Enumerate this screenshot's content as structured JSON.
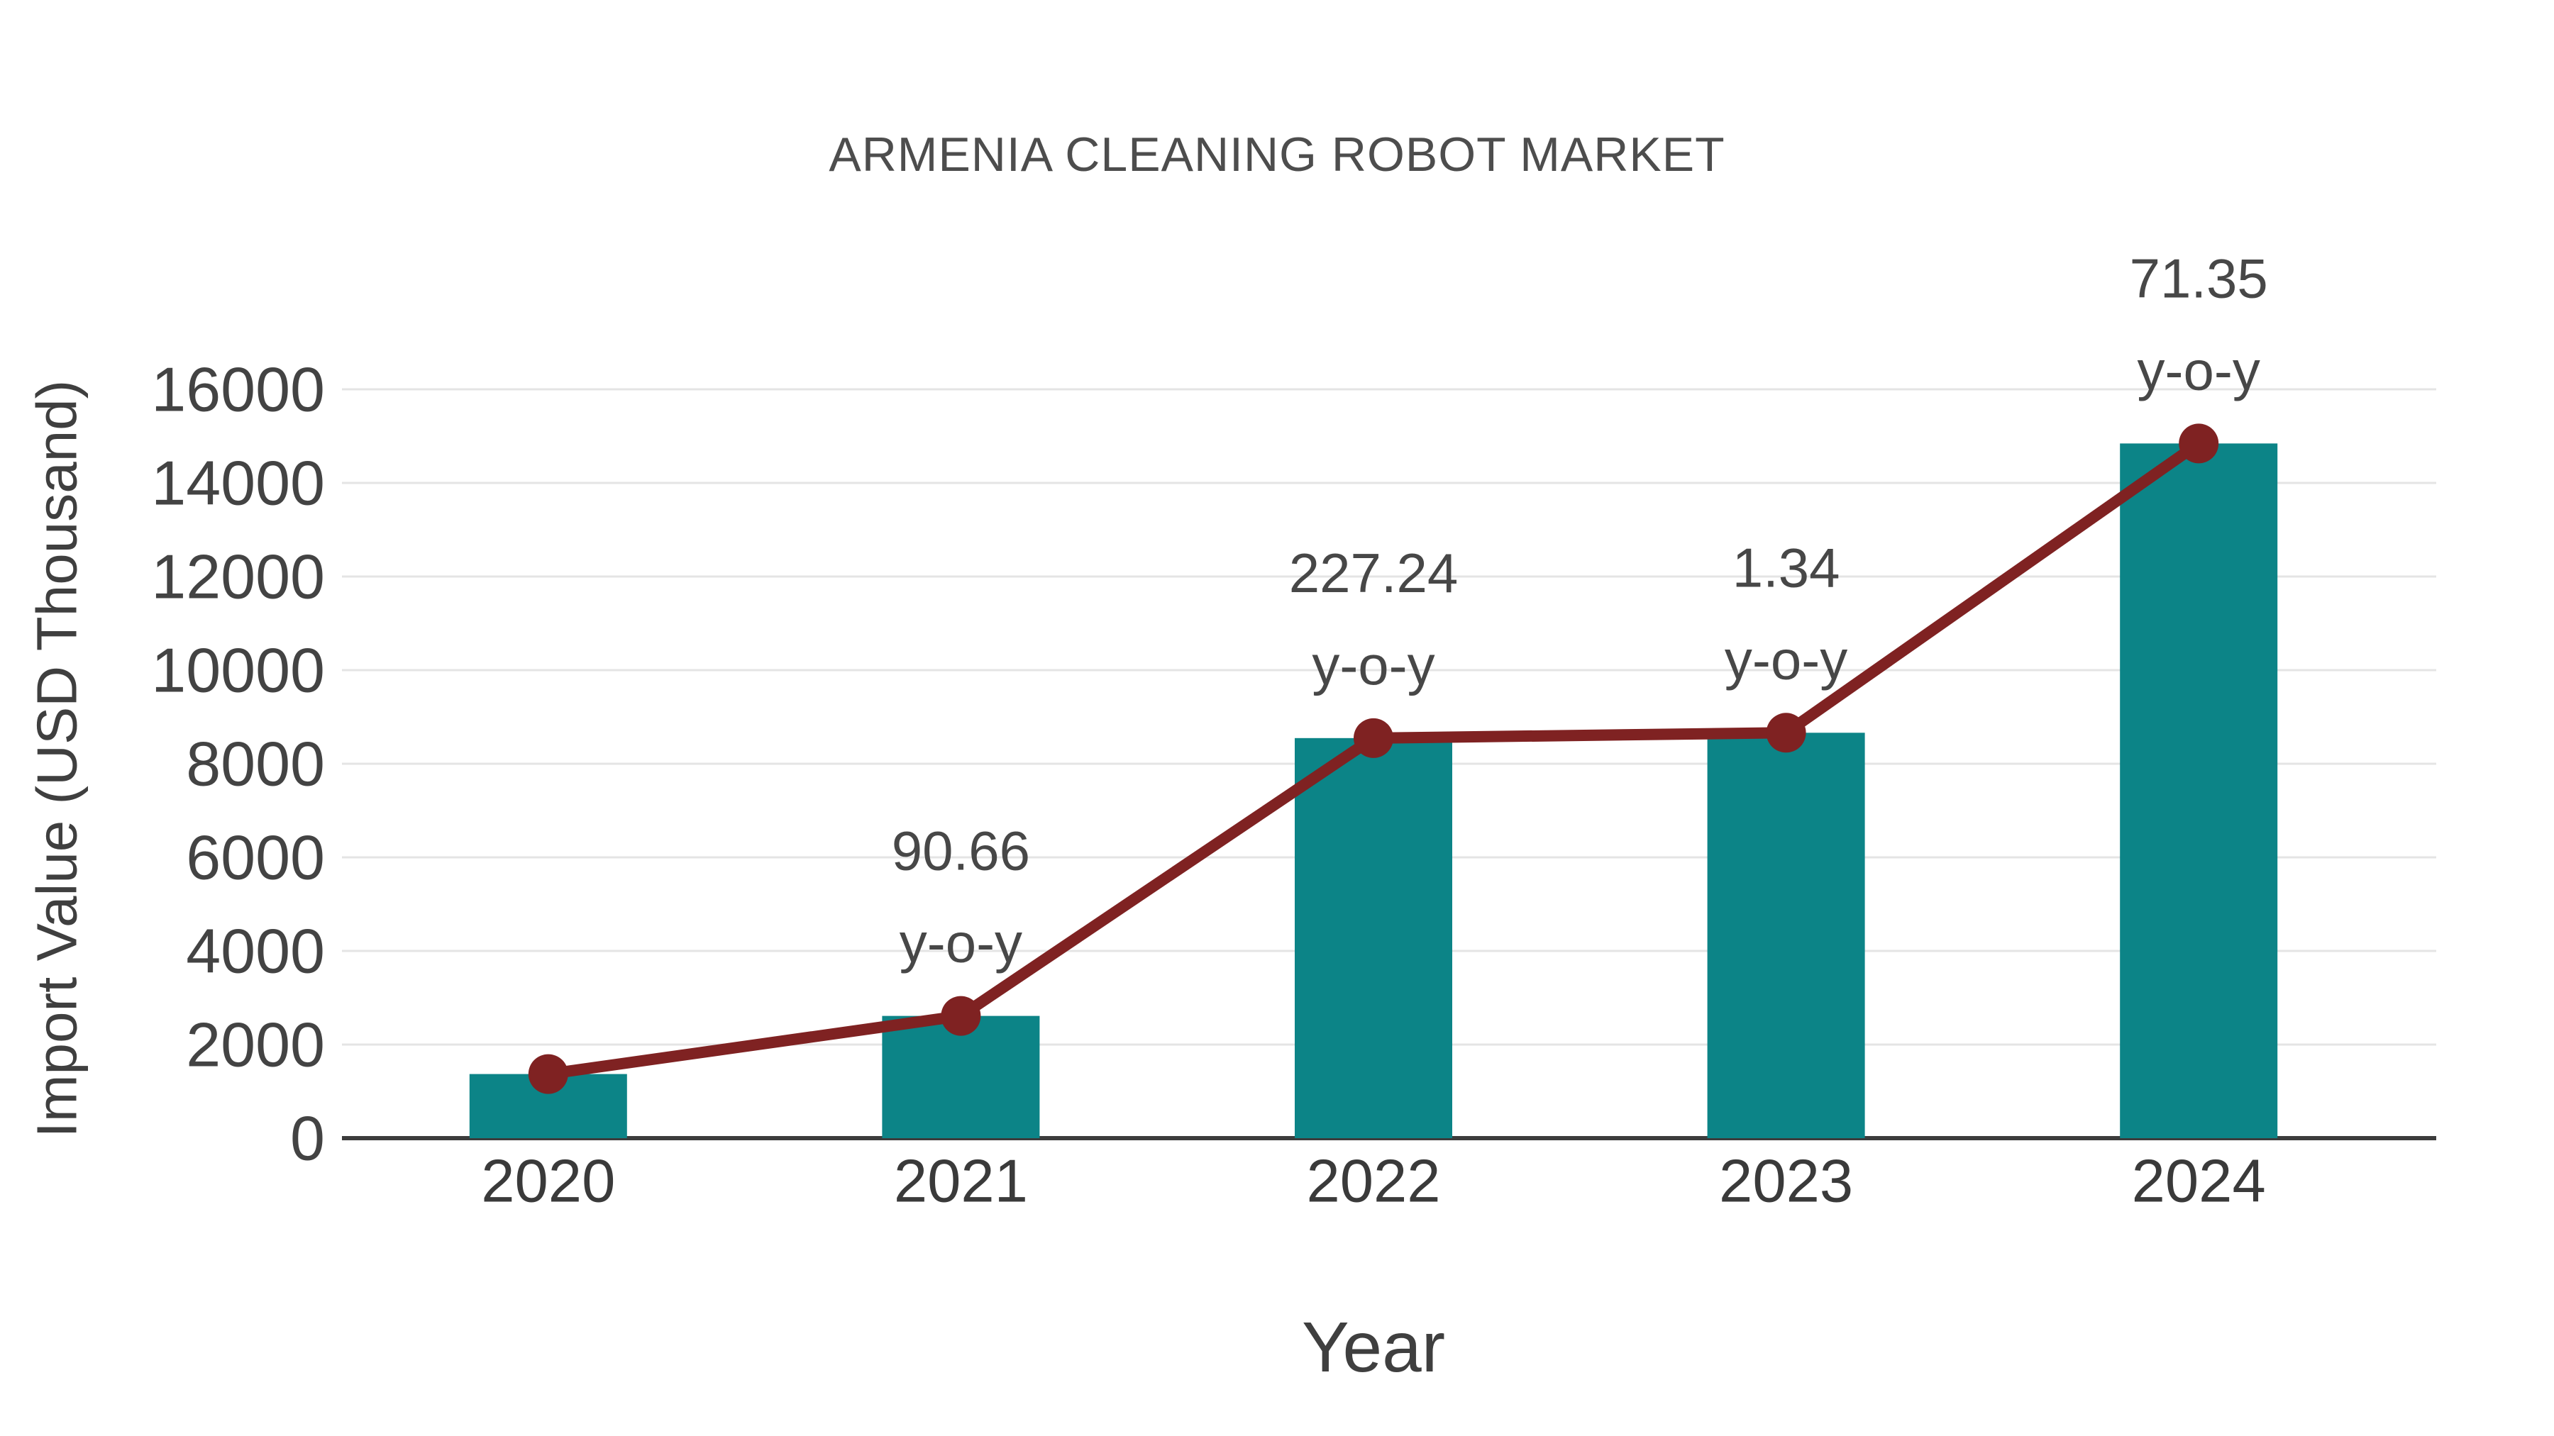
{
  "page": {
    "background": "#ffffff"
  },
  "chart_data": {
    "type": "bar",
    "subtype": "bar-with-trend-line",
    "title": "ARMENIA CLEANING ROBOT MARKET",
    "xlabel": "Year",
    "ylabel": "Import Value (USD Thousand)",
    "categories": [
      "2020",
      "2021",
      "2022",
      "2023",
      "2024"
    ],
    "series": [
      {
        "name": "Import Value (USD Thousand)",
        "type": "bar",
        "color": "#0c8487",
        "values": [
          1370,
          2612,
          8548,
          8662,
          14843
        ]
      },
      {
        "name": "Import Value trend",
        "type": "line",
        "color": "#7f2222",
        "marker": "circle",
        "values": [
          1370,
          2612,
          8548,
          8662,
          14843
        ]
      }
    ],
    "annotations": [
      {
        "category": "2021",
        "value": 90.66,
        "lines": [
          "90.66",
          "y-o-y"
        ]
      },
      {
        "category": "2022",
        "value": 227.24,
        "lines": [
          "227.24",
          "y-o-y"
        ]
      },
      {
        "category": "2023",
        "value": 1.34,
        "lines": [
          "1.34",
          "y-o-y"
        ]
      },
      {
        "category": "2024",
        "value": 71.35,
        "lines": [
          "71.35",
          "y-o-y"
        ]
      }
    ],
    "yticks": [
      0,
      2000,
      4000,
      6000,
      8000,
      10000,
      12000,
      14000,
      16000
    ],
    "ylim": [
      0,
      17100
    ],
    "grid": true,
    "legend": "none",
    "colors": {
      "bar": "#0c8487",
      "line": "#7f2222",
      "grid": "#e4e4e4",
      "axis": "#3c3c3c",
      "tick_text": "#434343",
      "title_text": "#4d4d4d",
      "annotation_text": "#474747"
    }
  }
}
